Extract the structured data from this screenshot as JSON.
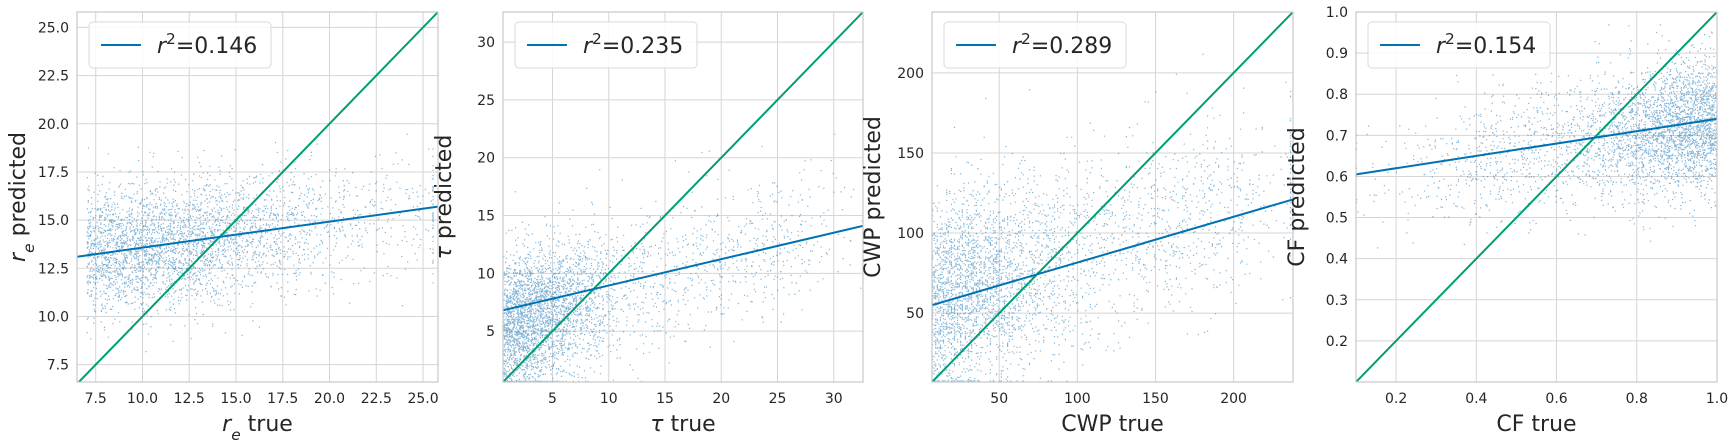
{
  "figure": {
    "layout": "four scatter panels, each with a regression line, a y=x identity line and a top-left legend"
  },
  "colors": {
    "scatter": "#1f77b4",
    "regression": "#0072b2",
    "identity": "#009e73",
    "grid": "#d5d5d5",
    "frame": "#c8c8c8",
    "text": "#262626"
  },
  "chart_data": [
    {
      "type": "scatter",
      "xlabel_parts": [
        {
          "text": "r",
          "italic": true
        },
        {
          "text": "e",
          "italic": true,
          "sub": true
        },
        {
          "text": " true"
        }
      ],
      "ylabel_parts": [
        {
          "text": "r",
          "italic": true
        },
        {
          "text": "e",
          "italic": true,
          "sub": true
        },
        {
          "text": " predicted"
        }
      ],
      "xlim": [
        6.5,
        25.8
      ],
      "ylim": [
        6.6,
        25.8
      ],
      "xticks": [
        7.5,
        10.0,
        12.5,
        15.0,
        17.5,
        20.0,
        22.5,
        25.0
      ],
      "xtick_labels": [
        "7.5",
        "10.0",
        "12.5",
        "15.0",
        "17.5",
        "20.0",
        "22.5",
        "25.0"
      ],
      "yticks": [
        7.5,
        10.0,
        12.5,
        15.0,
        17.5,
        20.0,
        22.5,
        25.0
      ],
      "ytick_labels": [
        "7.5",
        "10.0",
        "12.5",
        "15.0",
        "17.5",
        "20.0",
        "22.5",
        "25.0"
      ],
      "grid": true,
      "legend": {
        "position": "top-left",
        "entries": [
          {
            "label_parts": [
              {
                "text": "r",
                "italic": true
              },
              {
                "text": "2",
                "sup": true
              },
              {
                "text": "=0.146"
              }
            ]
          }
        ]
      },
      "r2": 0.146,
      "regression_line": {
        "x": [
          6.5,
          25.8
        ],
        "y": [
          13.1,
          15.7
        ]
      },
      "identity_line": true,
      "scatter_summary": {
        "x_range": [
          7,
          25.5
        ],
        "y_range": [
          9,
          19
        ],
        "center": [
          13.5,
          14.0
        ]
      }
    },
    {
      "type": "scatter",
      "xlabel_parts": [
        {
          "text": "τ",
          "italic": true
        },
        {
          "text": " true"
        }
      ],
      "ylabel_parts": [
        {
          "text": "τ",
          "italic": true
        },
        {
          "text": " predicted"
        }
      ],
      "xlim": [
        0.6,
        32.6
      ],
      "ylim": [
        0.6,
        32.6
      ],
      "xticks": [
        5,
        10,
        15,
        20,
        25,
        30
      ],
      "xtick_labels": [
        "5",
        "10",
        "15",
        "20",
        "25",
        "30"
      ],
      "yticks": [
        5,
        10,
        15,
        20,
        25,
        30
      ],
      "ytick_labels": [
        "5",
        "10",
        "15",
        "20",
        "25",
        "30"
      ],
      "grid": true,
      "legend": {
        "position": "top-left",
        "entries": [
          {
            "label_parts": [
              {
                "text": "r",
                "italic": true
              },
              {
                "text": "2",
                "sup": true
              },
              {
                "text": "=0.235"
              }
            ]
          }
        ]
      },
      "r2": 0.235,
      "regression_line": {
        "x": [
          0.6,
          32.6
        ],
        "y": [
          6.8,
          14.1
        ]
      },
      "identity_line": true,
      "scatter_summary": {
        "x_range": [
          0.6,
          32
        ],
        "y_range": [
          0.6,
          18
        ],
        "center": [
          3.5,
          6.5
        ]
      }
    },
    {
      "type": "scatter",
      "xlabel_parts": [
        {
          "text": "CWP true"
        }
      ],
      "ylabel_parts": [
        {
          "text": "CWP predicted"
        }
      ],
      "xlim": [
        7,
        238
      ],
      "ylim": [
        7,
        238
      ],
      "xticks": [
        50,
        100,
        150,
        200
      ],
      "xtick_labels": [
        "50",
        "100",
        "150",
        "200"
      ],
      "yticks": [
        50,
        100,
        150,
        200
      ],
      "ytick_labels": [
        "50",
        "100",
        "150",
        "200"
      ],
      "grid": true,
      "legend": {
        "position": "top-left",
        "entries": [
          {
            "label_parts": [
              {
                "text": "r",
                "italic": true
              },
              {
                "text": "2",
                "sup": true
              },
              {
                "text": "=0.289"
              }
            ]
          }
        ]
      },
      "r2": 0.289,
      "regression_line": {
        "x": [
          7,
          238
        ],
        "y": [
          55,
          121
        ]
      },
      "identity_line": true,
      "scatter_summary": {
        "x_range": [
          7,
          236
        ],
        "y_range": [
          7,
          200
        ],
        "center": [
          40,
          75
        ]
      }
    },
    {
      "type": "scatter",
      "xlabel_parts": [
        {
          "text": "CF true"
        }
      ],
      "ylabel_parts": [
        {
          "text": "CF predicted"
        }
      ],
      "xlim": [
        0.1,
        1.0
      ],
      "ylim": [
        0.1,
        1.0
      ],
      "xticks": [
        0.2,
        0.4,
        0.6,
        0.8,
        1.0
      ],
      "xtick_labels": [
        "0.2",
        "0.4",
        "0.6",
        "0.8",
        "1.0"
      ],
      "yticks": [
        0.2,
        0.3,
        0.4,
        0.5,
        0.6,
        0.7,
        0.8,
        0.9,
        1.0
      ],
      "ytick_labels": [
        "0.2",
        "0.3",
        "0.4",
        "0.5",
        "0.6",
        "0.7",
        "0.8",
        "0.9",
        "1.0"
      ],
      "grid": true,
      "legend": {
        "position": "top-left",
        "entries": [
          {
            "label_parts": [
              {
                "text": "r",
                "italic": true
              },
              {
                "text": "2",
                "sup": true
              },
              {
                "text": "=0.154"
              }
            ]
          }
        ]
      },
      "r2": 0.154,
      "regression_line": {
        "x": [
          0.1,
          1.0
        ],
        "y": [
          0.605,
          0.74
        ]
      },
      "identity_line": true,
      "scatter_summary": {
        "x_range": [
          0.1,
          1.0
        ],
        "y_range": [
          0.35,
          0.95
        ],
        "center": [
          0.9,
          0.73
        ]
      }
    }
  ]
}
